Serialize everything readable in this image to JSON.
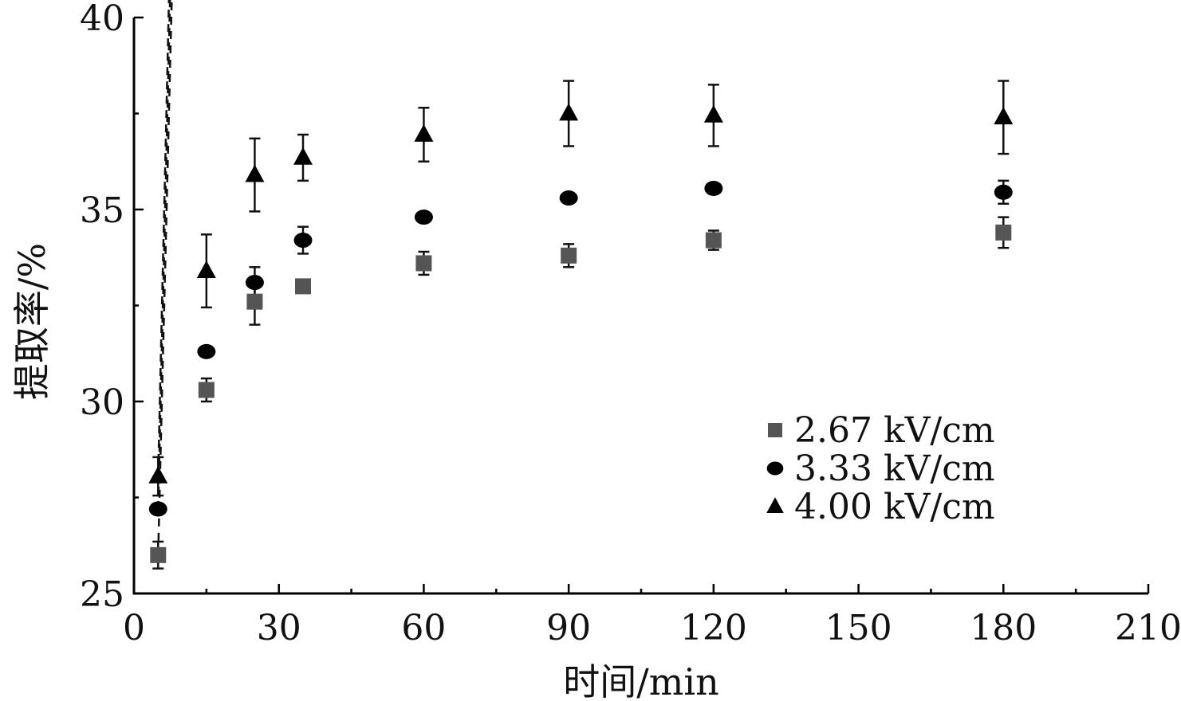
{
  "chart_data": {
    "type": "scatter",
    "xlabel": "时间/min",
    "ylabel": "提取率/%",
    "xlim": [
      0,
      210
    ],
    "ylim": [
      25,
      40
    ],
    "xticks": [
      0,
      30,
      60,
      90,
      120,
      150,
      180,
      210
    ],
    "yticks": [
      25,
      30,
      35,
      40
    ],
    "legend_position": "bottom-right",
    "grid": false,
    "series": [
      {
        "name": "2.67 kV/cm",
        "marker": "square",
        "color": "#555555",
        "x": [
          5,
          15,
          25,
          35,
          60,
          90,
          120,
          180
        ],
        "y": [
          26.0,
          30.3,
          32.6,
          33.0,
          33.6,
          33.8,
          34.2,
          34.4
        ],
        "error": [
          0.35,
          0.3,
          0.6,
          0.1,
          0.3,
          0.3,
          0.25,
          0.4
        ],
        "fit_line": true
      },
      {
        "name": "3.33 kV/cm",
        "marker": "circle",
        "color": "#000000",
        "x": [
          5,
          15,
          25,
          35,
          60,
          90,
          120,
          180
        ],
        "y": [
          27.2,
          31.3,
          33.1,
          34.2,
          34.8,
          35.3,
          35.55,
          35.45
        ],
        "error": [
          0.1,
          0.1,
          0.4,
          0.35,
          0.1,
          0.1,
          0.1,
          0.3
        ],
        "fit_line": true
      },
      {
        "name": "4.00 kV/cm",
        "marker": "triangle",
        "color": "#000000",
        "x": [
          5,
          15,
          25,
          35,
          60,
          90,
          120,
          180
        ],
        "y": [
          28.05,
          33.4,
          35.9,
          36.35,
          36.95,
          37.5,
          37.45,
          37.4
        ],
        "error": [
          0.5,
          0.95,
          0.95,
          0.6,
          0.7,
          0.85,
          0.8,
          0.95
        ],
        "fit_line": true
      }
    ]
  }
}
